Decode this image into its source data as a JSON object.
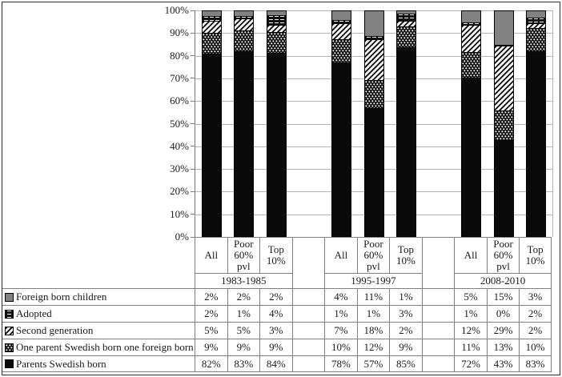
{
  "chart_data": {
    "type": "bar",
    "stacked": true,
    "unit": "%",
    "ylim": [
      0,
      100
    ],
    "grid": true,
    "ytick_labels": [
      "100%",
      "90%",
      "80%",
      "70%",
      "60%",
      "50%",
      "40%",
      "30%",
      "20%",
      "10%",
      "0%"
    ],
    "column_headers": [
      "All",
      "Poor\n60%\npvl",
      "Top\n10%"
    ],
    "groups": [
      {
        "period": "1983-1985"
      },
      {
        "period": "1995-1997"
      },
      {
        "period": "2008-2010"
      }
    ],
    "legend_position": "table-rows-bottom-left",
    "stack_order_top_to_bottom": [
      "Foreign born children",
      "Adopted",
      "Second generation",
      "One parent Swedish born one foreign born",
      "Parents Swedish born"
    ],
    "series": [
      {
        "name": "Foreign born children",
        "pattern": "solid-gray",
        "values": [
          2,
          2,
          2,
          4,
          11,
          1,
          5,
          15,
          3
        ]
      },
      {
        "name": "Adopted",
        "pattern": "brick",
        "values": [
          2,
          1,
          4,
          1,
          1,
          3,
          1,
          0,
          2
        ]
      },
      {
        "name": "Second generation",
        "pattern": "diagonal-hatch",
        "values": [
          5,
          5,
          3,
          7,
          18,
          2,
          12,
          29,
          2
        ]
      },
      {
        "name": "One parent Swedish born one foreign born",
        "pattern": "dots",
        "values": [
          9,
          9,
          9,
          10,
          12,
          9,
          11,
          13,
          10
        ]
      },
      {
        "name": "Parents Swedish born",
        "pattern": "solid-black",
        "values": [
          82,
          83,
          84,
          78,
          57,
          85,
          72,
          43,
          83
        ]
      }
    ]
  },
  "colors": {
    "segment_gray": "#828282",
    "segment_black": "#0a0a0a",
    "gridline": "#b3b3b3",
    "axis": "#7a7a7a",
    "table_border": "#808080",
    "figure_border": "#2e2e2e",
    "background": "#ffffff",
    "text": "#1a1a1a"
  }
}
